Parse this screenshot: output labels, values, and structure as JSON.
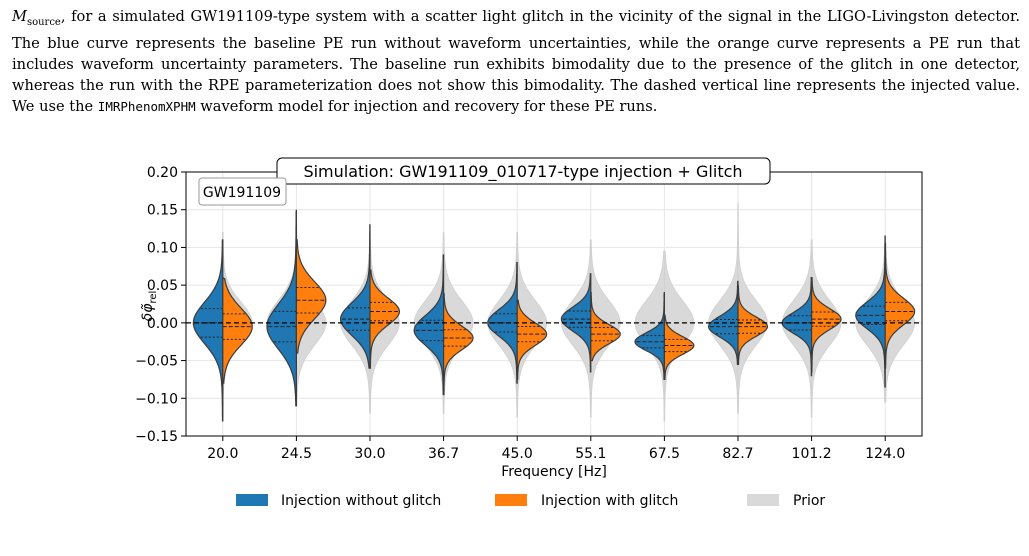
{
  "caption": {
    "line1_symbol": "M",
    "line1_sub": "source",
    "line1_rest": ", for a simulated GW191109-type system with a scatter light glitch in the vicinity of the signal in the LIGO-Livingston detector. The blue curve represents the baseline PE run without waveform uncertainties, while the orange curve represents a PE run that includes waveform uncertainty parameters. The baseline run exhibits bimodality due to the presence of the glitch in one detector, whereas the run with the RPE parameterization does not show this bimodality. The dashed vertical line represents the injected value. We use the ",
    "model": "IMRPhenomXPHM",
    "tail": " waveform model for injection and recovery for these PE runs."
  },
  "colors": {
    "blue": "#1f77b4",
    "orange": "#ff7f0e",
    "prior": "#d9d9d9"
  },
  "chart_data": {
    "type": "violin",
    "title": "Simulation: GW191109_010717-type injection + Glitch",
    "inset_label": "GW191109",
    "xlabel": "Frequency [Hz]",
    "ylabel": "δφ̃_rel",
    "ylim": [
      -0.15,
      0.2
    ],
    "yticks": [
      "0.20",
      "0.15",
      "0.10",
      "0.05",
      "0.00",
      "−0.05",
      "−0.10",
      "−0.15"
    ],
    "ytick_values": [
      0.2,
      0.15,
      0.1,
      0.05,
      0.0,
      -0.05,
      -0.1,
      -0.15
    ],
    "categories": [
      "20.0",
      "24.5",
      "30.0",
      "36.7",
      "45.0",
      "55.1",
      "67.5",
      "82.7",
      "101.2",
      "124.0"
    ],
    "injected_value": 0.0,
    "legend": [
      "Injection without glitch",
      "Injection with glitch",
      "Prior"
    ],
    "series": [
      {
        "name": "Injection without glitch",
        "side": "left",
        "medians": [
          0.0,
          -0.005,
          0.005,
          -0.01,
          0.0,
          0.005,
          -0.025,
          -0.005,
          0.0,
          0.01
        ],
        "spread": [
          0.028,
          0.03,
          0.022,
          0.02,
          0.018,
          0.016,
          0.012,
          0.014,
          0.014,
          0.018
        ],
        "min": [
          -0.13,
          -0.11,
          -0.06,
          -0.095,
          -0.08,
          -0.065,
          -0.075,
          -0.055,
          -0.07,
          -0.085
        ],
        "max": [
          0.11,
          0.15,
          0.13,
          0.09,
          0.08,
          0.065,
          0.04,
          0.055,
          0.06,
          0.115
        ]
      },
      {
        "name": "Injection with glitch",
        "side": "right",
        "medians": [
          -0.005,
          0.03,
          0.015,
          -0.02,
          -0.015,
          -0.015,
          -0.03,
          -0.005,
          0.005,
          0.015
        ],
        "spread": [
          0.025,
          0.025,
          0.018,
          0.016,
          0.015,
          0.013,
          0.012,
          0.013,
          0.014,
          0.018
        ],
        "min": [
          -0.08,
          -0.04,
          -0.06,
          -0.095,
          -0.075,
          -0.05,
          -0.075,
          -0.055,
          -0.065,
          -0.06
        ],
        "max": [
          0.06,
          0.11,
          0.07,
          0.04,
          0.03,
          0.04,
          0.01,
          0.05,
          0.06,
          0.105
        ]
      },
      {
        "name": "Prior",
        "side": "both",
        "medians": [
          0.0,
          0.0,
          0.0,
          0.0,
          0.0,
          0.0,
          0.0,
          0.0,
          0.0,
          0.0
        ],
        "spread": [
          0.028,
          0.03,
          0.03,
          0.03,
          0.03,
          0.03,
          0.03,
          0.03,
          0.03,
          0.03
        ],
        "min": [
          -0.13,
          -0.11,
          -0.12,
          -0.12,
          -0.125,
          -0.125,
          -0.13,
          -0.12,
          -0.125,
          -0.105
        ],
        "max": [
          0.12,
          0.13,
          0.11,
          0.12,
          0.12,
          0.11,
          0.095,
          0.16,
          0.11,
          0.11
        ]
      }
    ]
  }
}
